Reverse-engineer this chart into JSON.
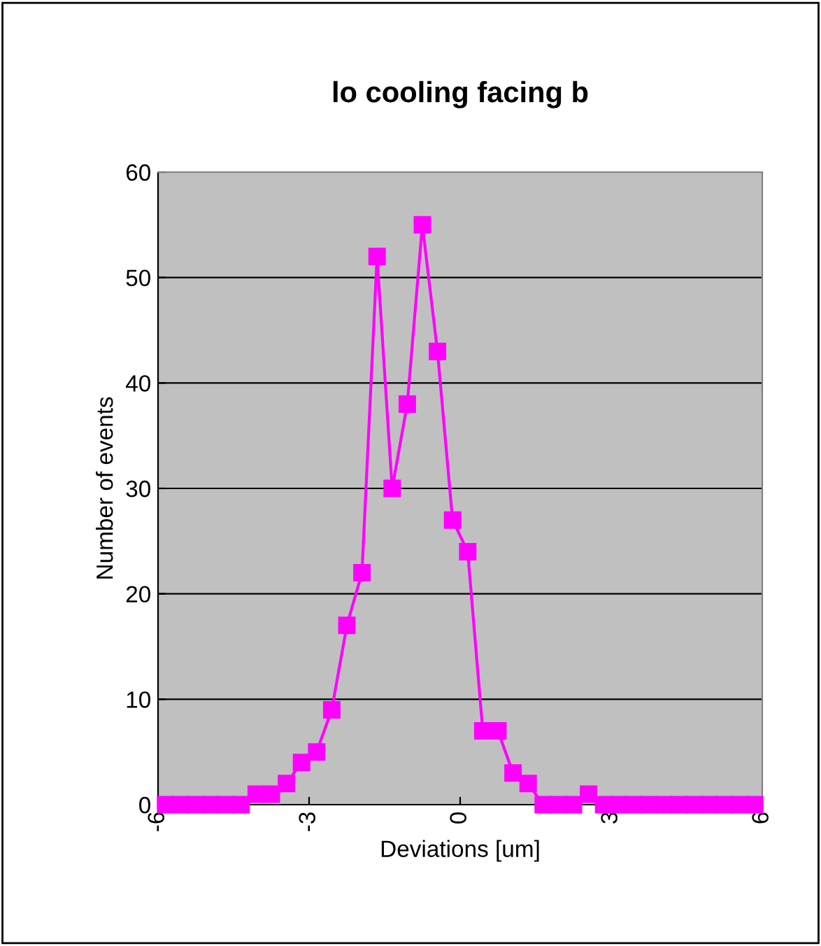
{
  "chart_data": {
    "type": "line",
    "title": "lo cooling facing b",
    "xlabel": "Deviations [um]",
    "ylabel": "Number of events",
    "x": [
      -5.85,
      -5.55,
      -5.25,
      -4.95,
      -4.65,
      -4.35,
      -4.05,
      -3.75,
      -3.45,
      -3.15,
      -2.85,
      -2.55,
      -2.25,
      -1.95,
      -1.65,
      -1.35,
      -1.05,
      -0.75,
      -0.45,
      -0.15,
      0.15,
      0.45,
      0.75,
      1.05,
      1.35,
      1.65,
      1.95,
      2.25,
      2.55,
      2.85,
      3.15,
      3.45,
      3.75,
      4.05,
      4.35,
      4.65,
      4.95,
      5.25,
      5.55,
      5.85
    ],
    "series": [
      {
        "color": "#ff00ff",
        "values": [
          0,
          0,
          0,
          0,
          0,
          0,
          1,
          1,
          2,
          4,
          5,
          9,
          17,
          22,
          52,
          30,
          38,
          55,
          43,
          27,
          24,
          7,
          7,
          3,
          2,
          0,
          0,
          0,
          1,
          0,
          0,
          0,
          0,
          0,
          0,
          0,
          0,
          0,
          0,
          0
        ]
      }
    ],
    "xlim": [
      -6,
      6
    ],
    "xticks": [
      -6,
      -3,
      0,
      3,
      6
    ],
    "ylim": [
      0,
      60
    ],
    "yticks": [
      0,
      10,
      20,
      30,
      40,
      50,
      60
    ],
    "grid": "y",
    "marker": "square",
    "line_style": "solid",
    "legend": false
  }
}
